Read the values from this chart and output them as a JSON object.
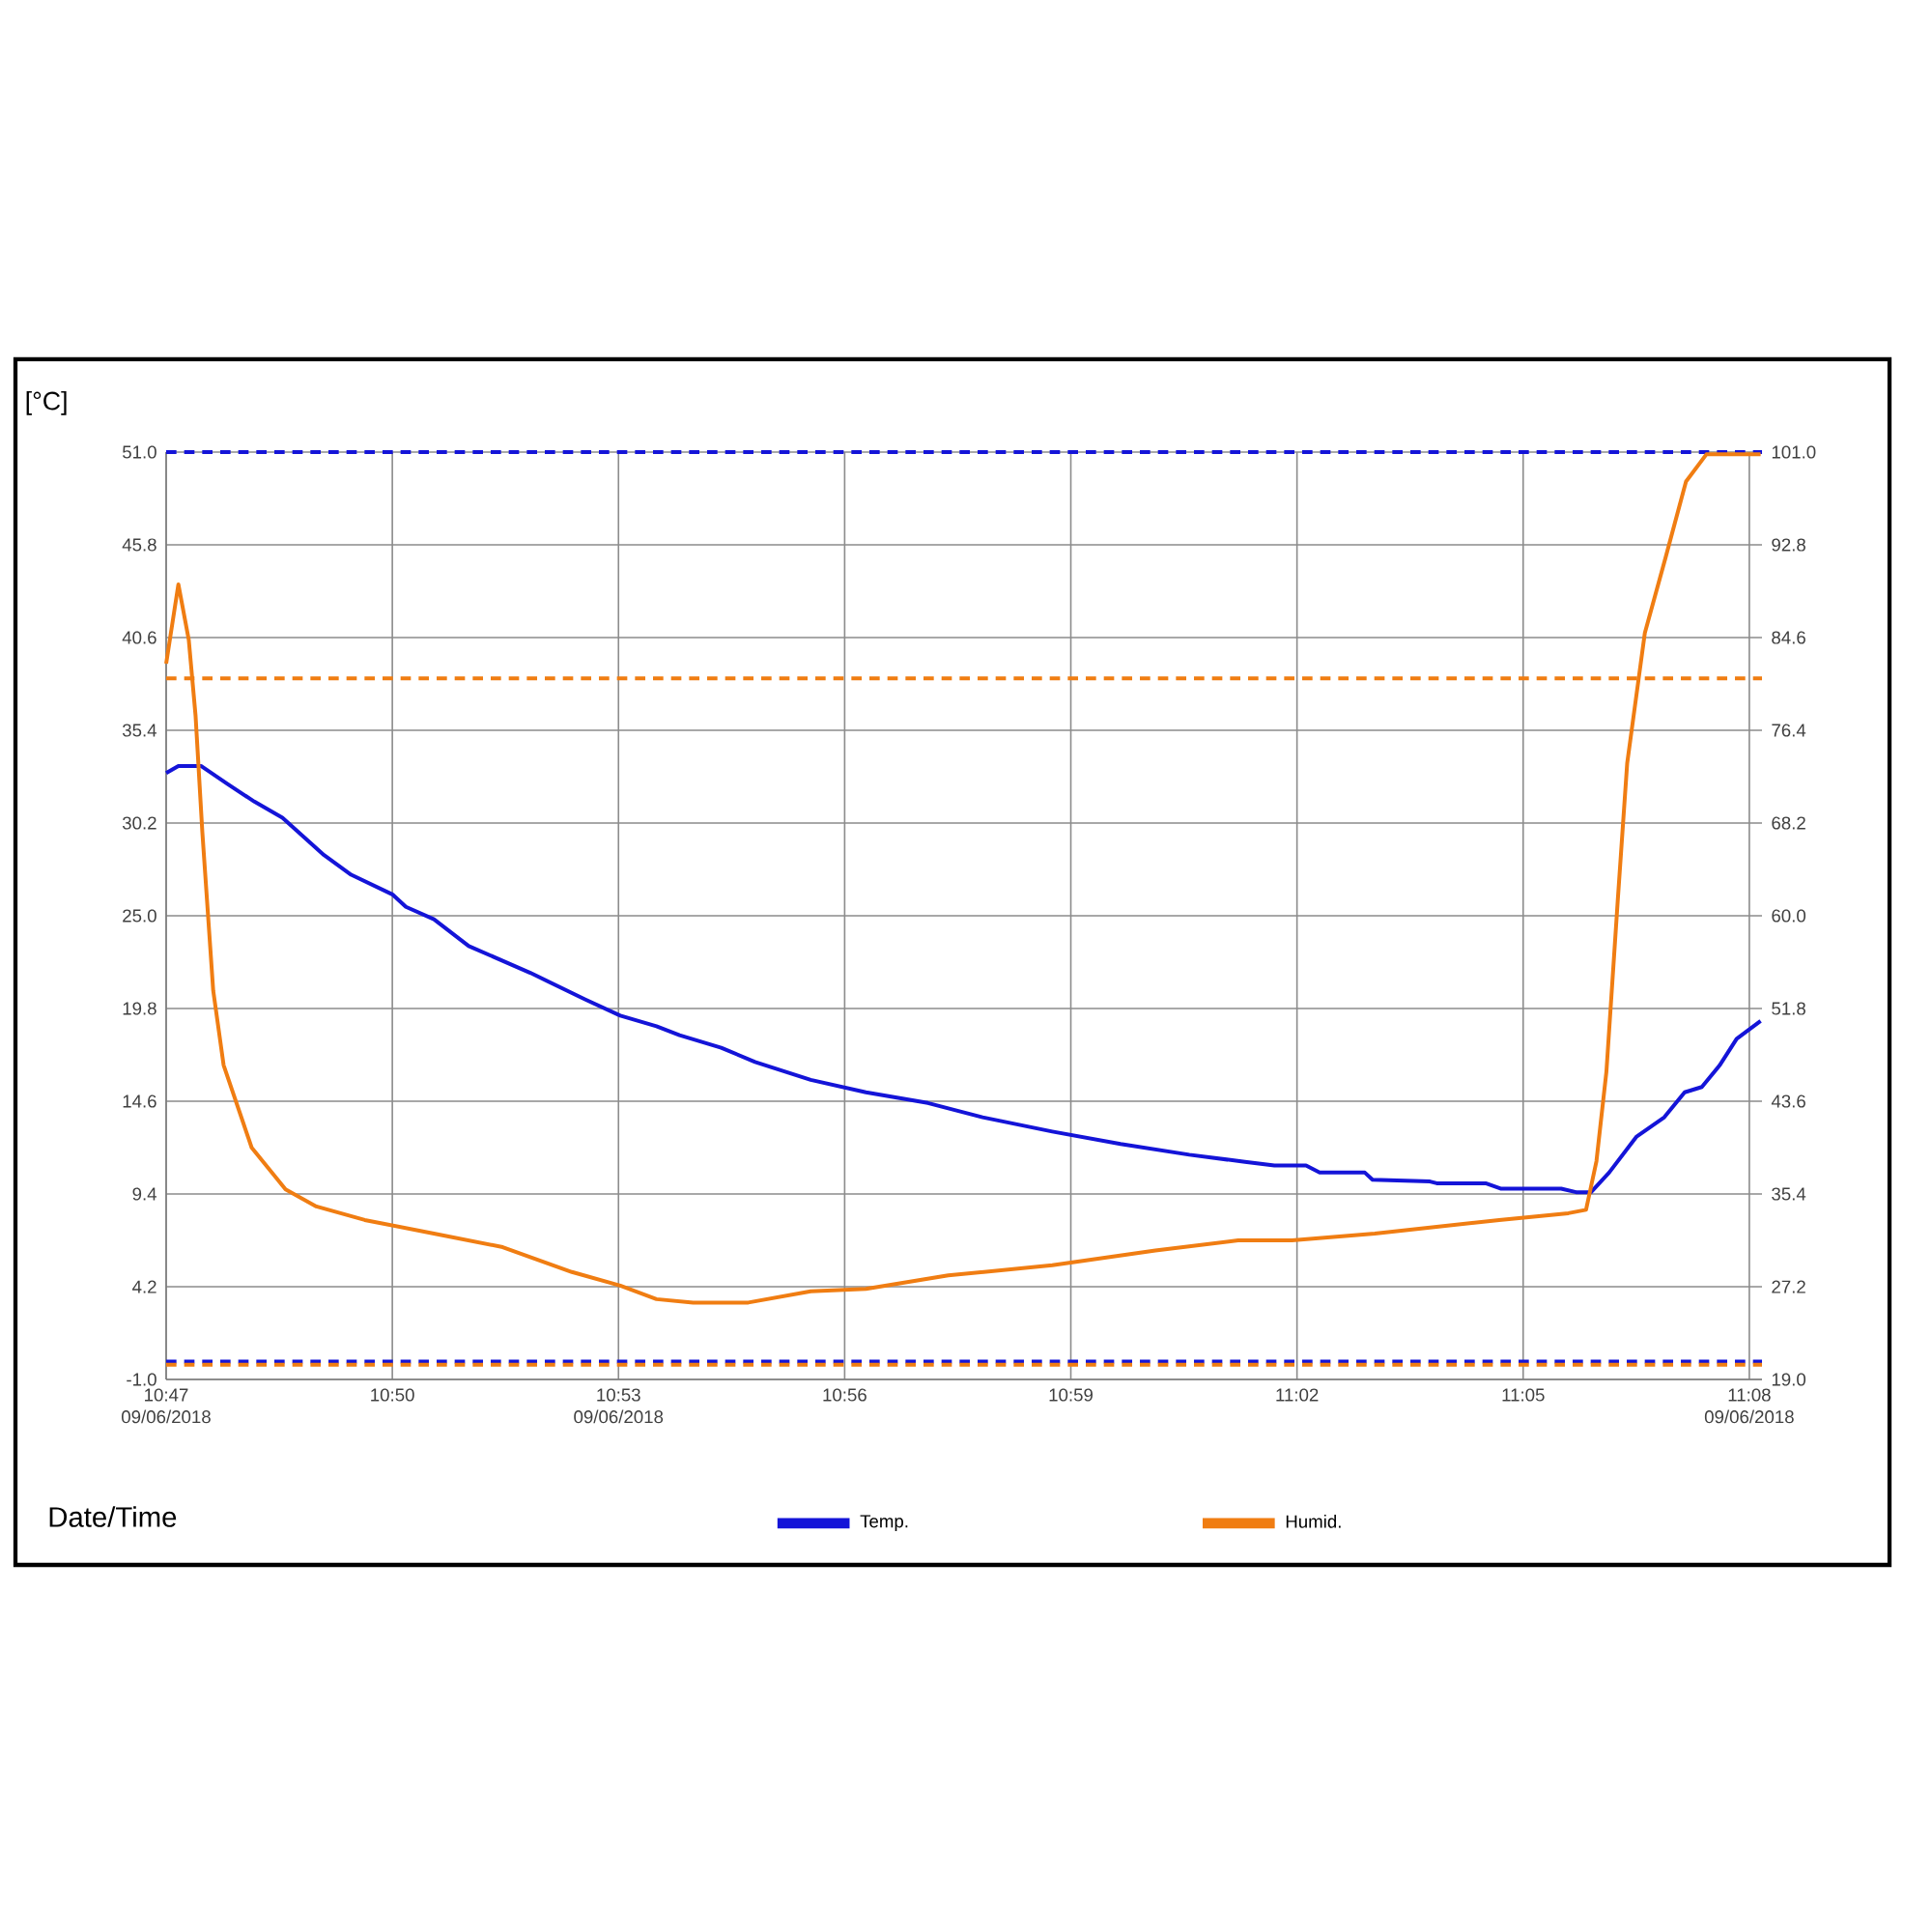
{
  "chart_data": {
    "type": "line",
    "ylabel": "[°C]",
    "xlabel": "Date/Time",
    "xlim": [
      10.7833,
      11.1361
    ],
    "xticks": [
      {
        "value": 10.7833,
        "label": "10:47 09/06/2018"
      },
      {
        "value": 10.8333,
        "label": "10:50"
      },
      {
        "value": 10.8833,
        "label": "10:53 09/06/2018"
      },
      {
        "value": 10.9333,
        "label": "10:56"
      },
      {
        "value": 10.9833,
        "label": "10:59"
      },
      {
        "value": 11.0333,
        "label": "11:02"
      },
      {
        "value": 11.0833,
        "label": "11:05"
      },
      {
        "value": 11.1333,
        "label": "11:08 09/06/2018"
      }
    ],
    "ylim": [
      -1,
      51
    ],
    "yticks": [
      {
        "value": -1,
        "label": "-1.0"
      },
      {
        "value": 4.2,
        "label": "4.2"
      },
      {
        "value": 9.4,
        "label": "9.4"
      },
      {
        "value": 14.6,
        "label": "14.6"
      },
      {
        "value": 19.8,
        "label": "19.8"
      },
      {
        "value": 25,
        "label": "25.0"
      },
      {
        "value": 30.2,
        "label": "30.2"
      },
      {
        "value": 35.4,
        "label": "35.4"
      },
      {
        "value": 40.6,
        "label": "40.6"
      },
      {
        "value": 45.8,
        "label": "45.8"
      },
      {
        "value": 51,
        "label": "51.0"
      }
    ],
    "y2lim": [
      19,
      101
    ],
    "y2ticks": [
      {
        "value": 19,
        "label": "19.0"
      },
      {
        "value": 27.2,
        "label": "27.2"
      },
      {
        "value": 35.4,
        "label": "35.4"
      },
      {
        "value": 43.6,
        "label": "43.6"
      },
      {
        "value": 51.8,
        "label": "51.8"
      },
      {
        "value": 60,
        "label": "60.0"
      },
      {
        "value": 68.2,
        "label": "68.2"
      },
      {
        "value": 76.4,
        "label": "76.4"
      },
      {
        "value": 84.6,
        "label": "84.6"
      },
      {
        "value": 92.8,
        "label": "92.8"
      },
      {
        "value": 101,
        "label": "101.0"
      }
    ],
    "grid": true,
    "legend": "bottom",
    "marker": "none",
    "line_style": "solid",
    "series": [
      {
        "name": "Temp.",
        "color": "#1414d8",
        "x": [
          10.7833,
          10.786,
          10.791,
          10.7968,
          10.8028,
          10.809,
          10.8182,
          10.8242,
          10.8333,
          10.8363,
          10.8425,
          10.8502,
          10.8638,
          10.876,
          10.8837,
          10.8917,
          10.8968,
          10.906,
          10.9135,
          10.9258,
          10.938,
          10.9517,
          10.9638,
          10.9792,
          10.9943,
          11.0095,
          11.0218,
          11.0283,
          11.0353,
          11.0383,
          11.0483,
          11.05,
          11.0627,
          11.0642,
          11.075,
          11.0783,
          11.0917,
          11.095,
          11.0983,
          11.1023,
          11.1083,
          11.1145,
          11.119,
          11.1228,
          11.1267,
          11.1305,
          11.1358
        ],
        "values": [
          33.0,
          33.4,
          33.4,
          32.4,
          31.4,
          30.5,
          28.4,
          27.3,
          26.2,
          25.5,
          24.8,
          23.3,
          21.8,
          20.3,
          19.4,
          18.8,
          18.3,
          17.6,
          16.8,
          15.8,
          15.1,
          14.5,
          13.7,
          12.9,
          12.2,
          11.6,
          11.2,
          11.0,
          11.0,
          10.6,
          10.6,
          10.2,
          10.1,
          10.0,
          10.0,
          9.7,
          9.7,
          9.5,
          9.5,
          10.6,
          12.6,
          13.7,
          15.1,
          15.4,
          16.6,
          18.1,
          19.1
        ]
      },
      {
        "name": "Humid.",
        "color": "#f07d12",
        "axis": "y2",
        "x": [
          10.7833,
          10.786,
          10.7883,
          10.7898,
          10.7913,
          10.7937,
          10.796,
          10.8022,
          10.8097,
          10.8165,
          10.8272,
          10.8425,
          10.8577,
          10.873,
          10.8837,
          10.8917,
          10.8998,
          10.912,
          10.9258,
          10.938,
          10.9562,
          10.9792,
          11.002,
          11.0203,
          11.0322,
          11.0505,
          11.078,
          11.0933,
          11.0972,
          11.0995,
          11.1017,
          11.1042,
          11.1063,
          11.1102,
          11.1148,
          11.1193,
          11.1238,
          11.1358
        ],
        "values": [
          82.3,
          89.3,
          84.4,
          77.7,
          67.4,
          53.4,
          46.8,
          39.5,
          35.8,
          34.3,
          33.1,
          31.9,
          30.7,
          28.5,
          27.3,
          26.1,
          25.8,
          25.8,
          26.8,
          27.0,
          28.2,
          29.1,
          30.4,
          31.3,
          31.3,
          31.9,
          33.1,
          33.7,
          34.0,
          38.3,
          46.2,
          61.3,
          73.5,
          85.0,
          91.7,
          98.4,
          100.8,
          100.8
        ]
      }
    ],
    "ref_lines": [
      {
        "axis": "y",
        "value": 51,
        "color": "#1414d8",
        "line_style": "dashed"
      },
      {
        "axis": "y2",
        "value": 81,
        "color": "#f07d12",
        "line_style": "dashed"
      },
      {
        "axis": "y2",
        "value": 20.3,
        "color": "#f07d12",
        "line_style": "dashed"
      },
      {
        "axis": "y",
        "value": 0,
        "color": "#1414d8",
        "line_style": "dashed"
      }
    ]
  }
}
